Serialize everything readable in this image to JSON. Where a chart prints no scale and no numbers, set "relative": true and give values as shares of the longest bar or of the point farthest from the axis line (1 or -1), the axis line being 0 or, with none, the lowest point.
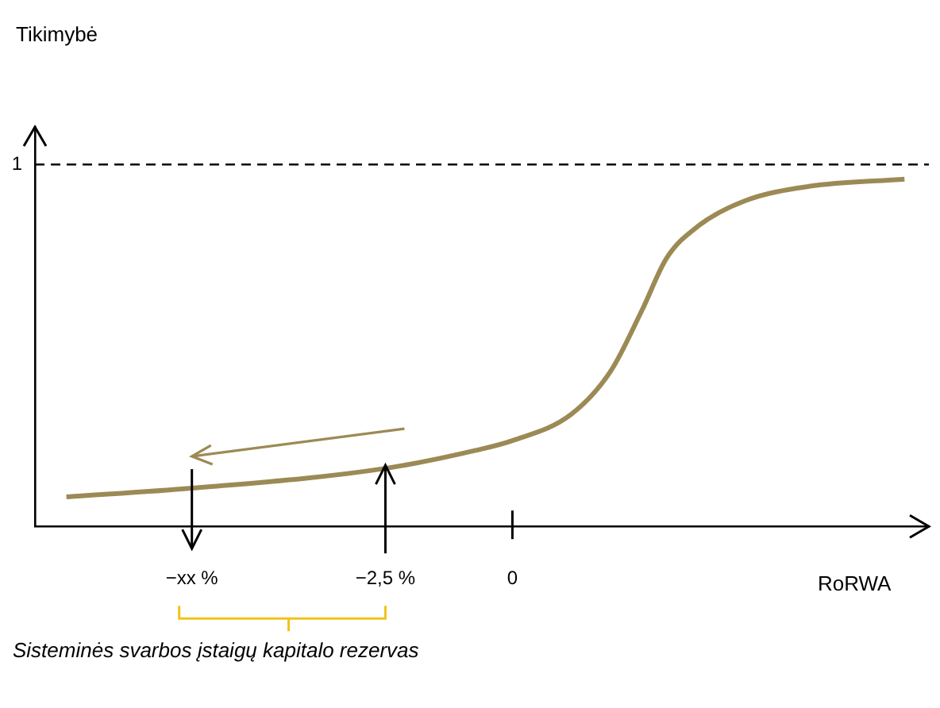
{
  "chart_data": {
    "type": "line",
    "relative": true,
    "xlabel": "RoRWA",
    "x": [
      -8.78,
      -6.31,
      -2.5,
      -0.72,
      0,
      1.16,
      1.94,
      2.56,
      3.03,
      3.66,
      4.59,
      5.84,
      7.72
    ],
    "series": [
      {
        "color": "#9c8a55",
        "values": [
          0.085,
          0.11,
          0.167,
          0.219,
          0.247,
          0.323,
          0.448,
          0.625,
          0.771,
          0.865,
          0.938,
          0.979,
          1
        ]
      }
    ],
    "xlim": [
      -9.4,
      8.2
    ],
    "xticks": [
      {
        "value": -6.31,
        "label": "−xx %"
      },
      {
        "value": -2.5,
        "label": "−2,5 %"
      },
      0
    ],
    "ref_lines": [
      {
        "axis": "y",
        "value": 1.042,
        "label": "1",
        "color": "#000000",
        "line_style": "dashed"
      }
    ],
    "annotations": [
      "Tikimybė",
      "Sisteminės svarbos įstaigų kapitalo rezervas"
    ],
    "grid": false,
    "legend": false,
    "marker": "none",
    "line_style": "solid"
  }
}
